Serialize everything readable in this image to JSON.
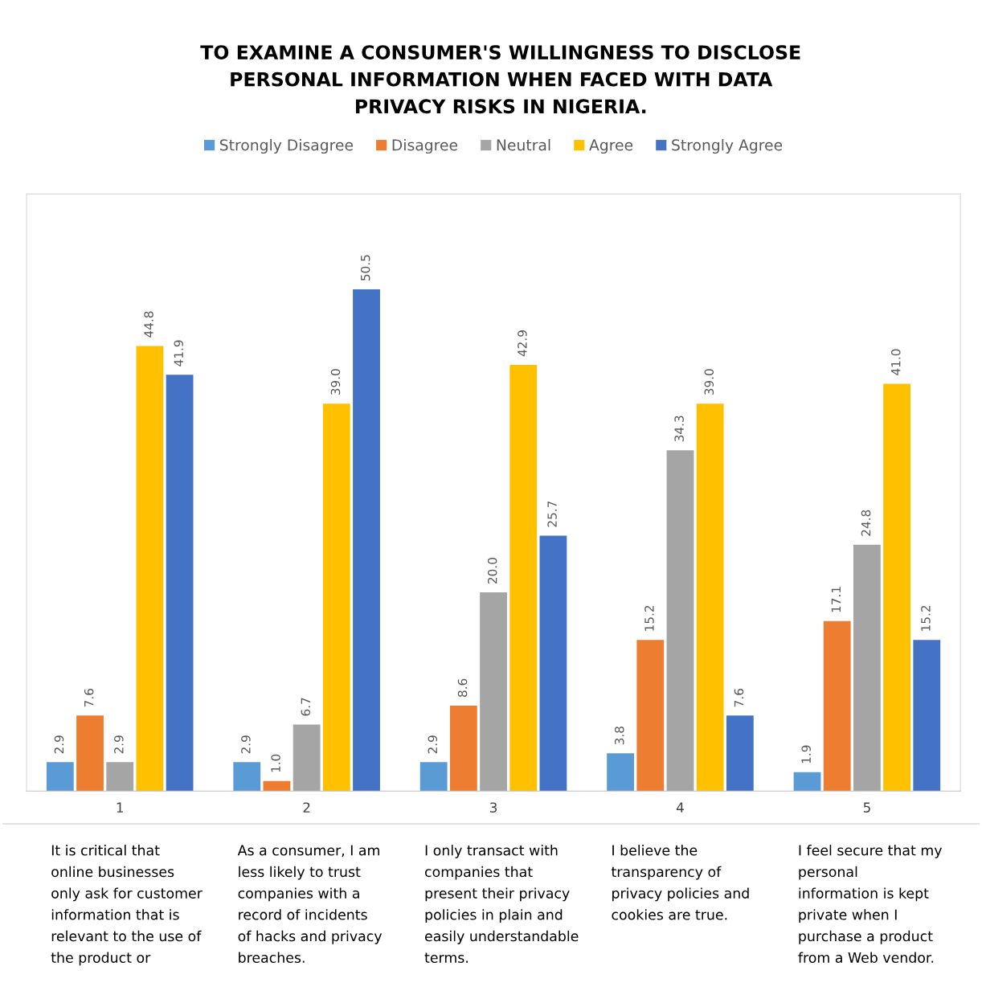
{
  "chart_data": {
    "type": "bar",
    "title": "TO EXAMINE A CONSUMER'S WILLINGNESS TO DISCLOSE\nPERSONAL INFORMATION WHEN FACED WITH DATA\nPRIVACY RISKS IN NIGERIA.",
    "categories": [
      "1",
      "2",
      "3",
      "4",
      "5"
    ],
    "series": [
      {
        "name": "Strongly Disagree",
        "color": "#5b9bd5",
        "values": [
          2.9,
          2.9,
          2.9,
          3.8,
          1.9
        ],
        "value_labels": [
          "2.9",
          "2.9",
          "2.9",
          "3.8",
          "1.9"
        ]
      },
      {
        "name": "Disagree",
        "color": "#ed7d31",
        "values": [
          7.6,
          1.0,
          8.6,
          15.2,
          17.1
        ],
        "value_labels": [
          "7.6",
          "1.0",
          "8.6",
          "15.2",
          "17.1"
        ]
      },
      {
        "name": "Neutral",
        "color": "#a5a5a5",
        "values": [
          2.9,
          6.7,
          20.0,
          34.3,
          24.8
        ],
        "value_labels": [
          "2.9",
          "6.7",
          "20.0",
          "34.3",
          "24.8"
        ]
      },
      {
        "name": "Agree",
        "color": "#ffc000",
        "values": [
          44.8,
          39.0,
          42.9,
          39.0,
          41.0
        ],
        "value_labels": [
          "44.8",
          "39.0",
          "42.9",
          "39.0",
          "41.0"
        ]
      },
      {
        "name": "Strongly Agree",
        "color": "#4472c4",
        "values": [
          41.9,
          50.5,
          25.7,
          7.6,
          15.2
        ],
        "value_labels": [
          "41.9",
          "50.5",
          "25.7",
          "7.6",
          "15.2"
        ]
      }
    ],
    "legend": "top",
    "grid": false,
    "annotations": [
      "It is critical that\nonline businesses\nonly ask for customer\ninformation that is\nrelevant to the use of\nthe product or",
      "As a consumer, I am\nless likely to trust\ncompanies with a\nrecord of incidents\nof hacks and privacy\nbreaches.",
      "I only transact with\ncompanies that\npresent their privacy\npolicies in plain and\neasily understandable\nterms.",
      "I believe the\ntransparency of\nprivacy policies and\ncookies are true.",
      "I feel secure that my\npersonal\ninformation is kept\nprivate when I\npurchase a product\nfrom a Web vendor."
    ]
  }
}
